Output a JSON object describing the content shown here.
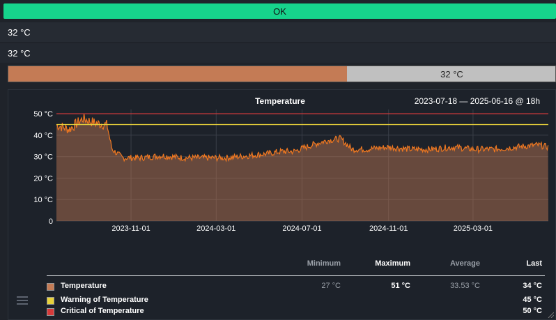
{
  "status": {
    "label": "OK",
    "color": "#16d48c"
  },
  "value_rows": [
    "32 °C",
    "32 °C"
  ],
  "gauge": {
    "label": "32 °C",
    "fraction": 0.6197,
    "fill_color": "#c47b55"
  },
  "graph": {
    "title": "Temperature",
    "range_text": "2023-07-18 — 2025-06-16 @ 18h",
    "legend": {
      "headers": {
        "minimum": "Minimum",
        "maximum": "Maximum",
        "average": "Average",
        "last": "Last"
      },
      "rows": [
        {
          "name": "Temperature",
          "color": "#c47b55",
          "minimum": "27 °C",
          "maximum": "51 °C",
          "average": "33.53 °C",
          "last": "34 °C"
        },
        {
          "name": "Warning of Temperature",
          "color": "#e8d23a",
          "minimum": "",
          "maximum": "",
          "average": "",
          "last": "45 °C"
        },
        {
          "name": "Critical of Temperature",
          "color": "#d63a3a",
          "minimum": "",
          "maximum": "",
          "average": "",
          "last": "50 °C"
        }
      ]
    }
  },
  "chart_data": {
    "type": "area",
    "title": "Temperature",
    "x_start": "2023-07-18",
    "x_end": "2025-06-16",
    "xticks": [
      "2023-11-01",
      "2024-03-01",
      "2024-07-01",
      "2024-11-01",
      "2025-03-01"
    ],
    "yticks": [
      "0",
      "10 °C",
      "20 °C",
      "30 °C",
      "40 °C",
      "50 °C"
    ],
    "ylim": [
      0,
      52
    ],
    "series": [
      {
        "name": "Temperature",
        "color": "#f07820",
        "x": [
          "2023-07-18",
          "2023-08-05",
          "2023-08-25",
          "2023-09-10",
          "2023-09-28",
          "2023-10-05",
          "2023-10-20",
          "2023-11-15",
          "2023-12-15",
          "2024-01-15",
          "2024-02-15",
          "2024-03-15",
          "2024-04-15",
          "2024-05-15",
          "2024-06-01",
          "2024-06-20",
          "2024-07-15",
          "2024-08-05",
          "2024-08-25",
          "2024-09-10",
          "2024-10-01",
          "2024-11-01",
          "2024-12-01",
          "2025-01-01",
          "2025-02-01",
          "2025-03-01",
          "2025-04-01",
          "2025-05-01",
          "2025-06-01",
          "2025-06-16"
        ],
        "y": [
          44,
          42,
          47,
          45,
          44,
          33,
          29,
          29,
          30,
          29,
          29,
          29,
          30,
          31,
          32,
          32,
          35,
          37,
          38,
          33,
          33,
          34,
          33,
          33,
          34,
          33,
          33,
          34,
          35,
          34
        ]
      },
      {
        "name": "Warning of Temperature",
        "color": "#e8d23a",
        "x": [
          "2023-07-18",
          "2025-06-16"
        ],
        "y": [
          45,
          45
        ]
      },
      {
        "name": "Critical of Temperature",
        "color": "#d63a3a",
        "x": [
          "2023-07-18",
          "2025-06-16"
        ],
        "y": [
          50,
          50
        ]
      }
    ],
    "grid": true,
    "legend_position": "bottom"
  }
}
